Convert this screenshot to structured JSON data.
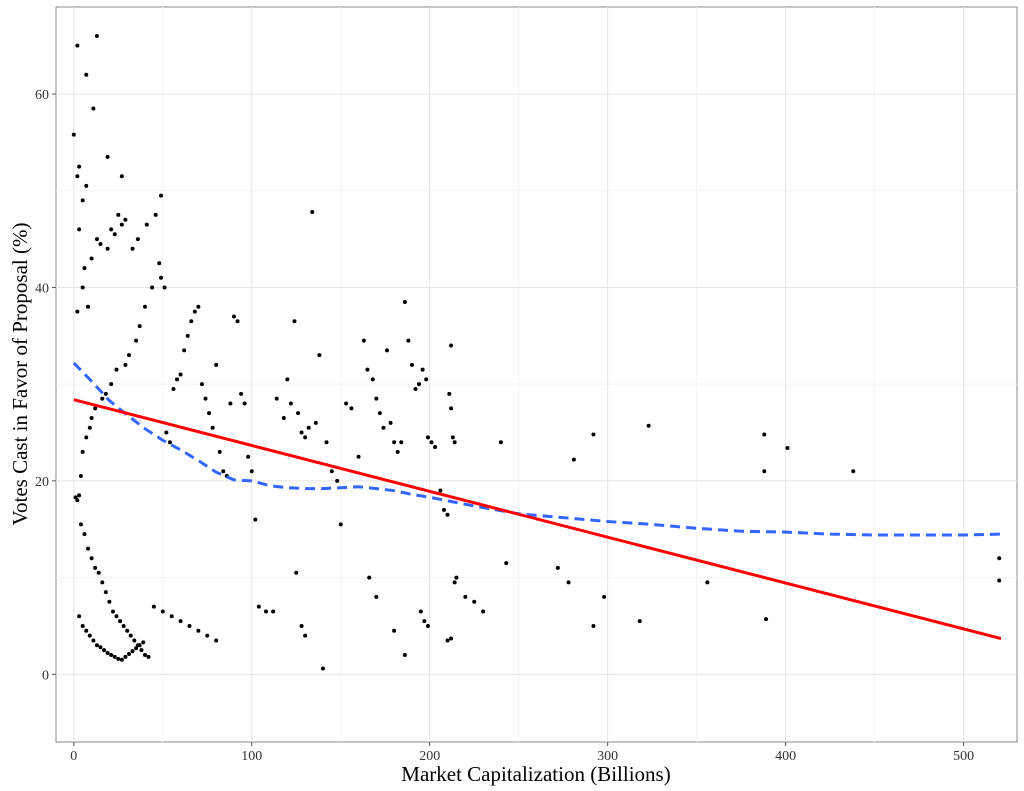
{
  "chart_data": {
    "type": "scatter",
    "xlabel": "Market Capitalization (Billions)",
    "ylabel": "Votes Cast in Favor of Proposal (%)",
    "xlim": [
      -10,
      530
    ],
    "ylim": [
      -7,
      69
    ],
    "x_ticks": [
      0,
      100,
      200,
      300,
      400,
      500
    ],
    "y_ticks": [
      0,
      20,
      40,
      60
    ],
    "x_tick_labels": [
      "0",
      "100",
      "200",
      "300",
      "400",
      "500"
    ],
    "y_tick_labels": [
      "0",
      "20",
      "40",
      "60"
    ],
    "grid": true,
    "legend": "none",
    "point_color": "#000000",
    "linear_fit": {
      "color": "#ff0000",
      "style": "solid",
      "x": [
        0,
        521
      ],
      "y": [
        28.4,
        3.7
      ]
    },
    "smooth_fit": {
      "color": "#3366ff",
      "style": "dashed",
      "x": [
        0,
        10,
        20,
        30,
        40,
        50,
        60,
        70,
        80,
        90,
        100,
        110,
        120,
        130,
        140,
        150,
        160,
        170,
        180,
        190,
        200,
        225,
        250,
        275,
        300,
        325,
        350,
        375,
        400,
        425,
        450,
        475,
        500,
        521
      ],
      "y": [
        32.2,
        30.3,
        28.3,
        26.8,
        25.4,
        24.2,
        23.2,
        22.1,
        20.9,
        20.1,
        20.0,
        19.5,
        19.3,
        19.2,
        19.2,
        19.3,
        19.4,
        19.2,
        19.0,
        18.6,
        18.3,
        17.4,
        16.6,
        16.2,
        15.8,
        15.5,
        15.1,
        14.8,
        14.7,
        14.5,
        14.4,
        14.4,
        14.4,
        14.5
      ]
    },
    "points": [
      [
        2,
        65
      ],
      [
        13,
        66
      ],
      [
        7,
        62
      ],
      [
        11,
        58.5
      ],
      [
        0,
        55.8
      ],
      [
        3,
        52.5
      ],
      [
        2,
        51.5
      ],
      [
        5,
        49
      ],
      [
        7,
        50.5
      ],
      [
        19,
        53.5
      ],
      [
        27,
        51.5
      ],
      [
        49,
        49.5
      ],
      [
        3,
        46
      ],
      [
        10,
        43
      ],
      [
        6,
        42
      ],
      [
        5,
        40
      ],
      [
        8,
        38
      ],
      [
        2,
        37.5
      ],
      [
        13,
        45
      ],
      [
        15,
        44.5
      ],
      [
        19,
        44
      ],
      [
        21,
        46
      ],
      [
        23,
        45.5
      ],
      [
        25,
        47.5
      ],
      [
        27,
        46.5
      ],
      [
        29,
        47
      ],
      [
        33,
        44
      ],
      [
        36,
        45
      ],
      [
        41,
        46.5
      ],
      [
        46,
        47.5
      ],
      [
        48,
        42.5
      ],
      [
        49,
        41
      ],
      [
        51,
        40
      ],
      [
        44,
        40
      ],
      [
        40,
        38
      ],
      [
        37,
        36
      ],
      [
        35,
        34.5
      ],
      [
        31,
        33
      ],
      [
        29,
        32
      ],
      [
        24,
        31.5
      ],
      [
        21,
        30
      ],
      [
        18,
        29
      ],
      [
        16,
        28.5
      ],
      [
        12,
        27.5
      ],
      [
        10,
        26.5
      ],
      [
        9,
        25.5
      ],
      [
        7,
        24.5
      ],
      [
        5,
        23
      ],
      [
        4,
        20.5
      ],
      [
        3,
        18.5
      ],
      [
        2,
        18
      ],
      [
        1,
        18.3
      ],
      [
        4,
        15.5
      ],
      [
        6,
        14.5
      ],
      [
        8,
        13
      ],
      [
        10,
        12
      ],
      [
        12,
        11
      ],
      [
        14,
        10.5
      ],
      [
        16,
        9.5
      ],
      [
        18,
        8.5
      ],
      [
        20,
        7.5
      ],
      [
        22,
        6.5
      ],
      [
        24,
        6
      ],
      [
        26,
        5.5
      ],
      [
        28,
        5
      ],
      [
        30,
        4.5
      ],
      [
        32,
        4
      ],
      [
        34,
        3.5
      ],
      [
        36,
        3
      ],
      [
        38,
        2.5
      ],
      [
        40,
        2
      ],
      [
        42,
        1.8
      ],
      [
        3,
        6
      ],
      [
        5,
        5
      ],
      [
        7,
        4.5
      ],
      [
        9,
        4
      ],
      [
        11,
        3.5
      ],
      [
        13,
        3
      ],
      [
        15,
        2.8
      ],
      [
        17,
        2.5
      ],
      [
        19,
        2.2
      ],
      [
        21,
        2
      ],
      [
        23,
        1.8
      ],
      [
        25,
        1.6
      ],
      [
        27,
        1.5
      ],
      [
        29,
        1.8
      ],
      [
        31,
        2.1
      ],
      [
        33,
        2.4
      ],
      [
        35,
        2.7
      ],
      [
        37,
        3
      ],
      [
        39,
        3.3
      ],
      [
        45,
        7
      ],
      [
        50,
        6.5
      ],
      [
        55,
        6
      ],
      [
        60,
        5.5
      ],
      [
        65,
        5
      ],
      [
        70,
        4.5
      ],
      [
        75,
        4
      ],
      [
        80,
        3.5
      ],
      [
        52,
        25
      ],
      [
        54,
        24
      ],
      [
        56,
        29.5
      ],
      [
        58,
        30.5
      ],
      [
        60,
        31
      ],
      [
        62,
        33.5
      ],
      [
        64,
        35
      ],
      [
        66,
        36.5
      ],
      [
        68,
        37.5
      ],
      [
        70,
        38
      ],
      [
        72,
        30
      ],
      [
        74,
        28.5
      ],
      [
        76,
        27
      ],
      [
        78,
        25.5
      ],
      [
        80,
        32
      ],
      [
        82,
        23
      ],
      [
        84,
        21
      ],
      [
        86,
        20.5
      ],
      [
        88,
        28
      ],
      [
        90,
        37
      ],
      [
        92,
        36.5
      ],
      [
        94,
        29
      ],
      [
        96,
        28
      ],
      [
        98,
        22.5
      ],
      [
        100,
        21
      ],
      [
        102,
        16
      ],
      [
        104,
        7
      ],
      [
        108,
        6.5
      ],
      [
        112,
        6.5
      ],
      [
        114,
        28.5
      ],
      [
        118,
        26.5
      ],
      [
        120,
        30.5
      ],
      [
        122,
        28
      ],
      [
        124,
        36.5
      ],
      [
        126,
        27
      ],
      [
        128,
        25
      ],
      [
        130,
        24.5
      ],
      [
        132,
        25.5
      ],
      [
        134,
        47.8
      ],
      [
        136,
        26
      ],
      [
        138,
        33
      ],
      [
        140,
        0.6
      ],
      [
        125,
        10.5
      ],
      [
        128,
        5
      ],
      [
        130,
        4
      ],
      [
        142,
        24
      ],
      [
        145,
        21
      ],
      [
        148,
        20
      ],
      [
        150,
        15.5
      ],
      [
        153,
        28
      ],
      [
        156,
        27.5
      ],
      [
        160,
        22.5
      ],
      [
        163,
        34.5
      ],
      [
        165,
        31.5
      ],
      [
        168,
        30.5
      ],
      [
        170,
        28.5
      ],
      [
        172,
        27
      ],
      [
        174,
        25.5
      ],
      [
        176,
        33.5
      ],
      [
        178,
        26
      ],
      [
        180,
        24
      ],
      [
        182,
        23
      ],
      [
        184,
        24
      ],
      [
        186,
        38.5
      ],
      [
        188,
        34.5
      ],
      [
        190,
        32
      ],
      [
        192,
        29.5
      ],
      [
        194,
        30
      ],
      [
        196,
        31.5
      ],
      [
        198,
        30.5
      ],
      [
        199,
        24.5
      ],
      [
        201,
        24
      ],
      [
        203,
        23.5
      ],
      [
        206,
        19
      ],
      [
        208,
        17
      ],
      [
        210,
        16.5
      ],
      [
        212,
        34
      ],
      [
        214,
        24
      ],
      [
        211,
        29
      ],
      [
        212,
        27.5
      ],
      [
        213,
        24.5
      ],
      [
        215,
        10
      ],
      [
        214,
        9.5
      ],
      [
        220,
        8
      ],
      [
        225,
        7.5
      ],
      [
        230,
        6.5
      ],
      [
        195,
        6.5
      ],
      [
        197,
        5.5
      ],
      [
        199,
        5
      ],
      [
        210,
        3.5
      ],
      [
        212,
        3.7
      ],
      [
        186,
        2
      ],
      [
        180,
        4.5
      ],
      [
        170,
        8
      ],
      [
        166,
        10
      ],
      [
        240,
        24
      ],
      [
        243,
        11.5
      ],
      [
        272,
        11
      ],
      [
        278,
        9.5
      ],
      [
        281,
        22.2
      ],
      [
        292,
        24.8
      ],
      [
        292,
        5
      ],
      [
        298,
        8
      ],
      [
        318,
        5.5
      ],
      [
        323,
        25.7
      ],
      [
        356,
        9.5
      ],
      [
        388,
        24.8
      ],
      [
        388,
        21
      ],
      [
        389,
        5.7
      ],
      [
        401,
        23.4
      ],
      [
        438,
        21
      ],
      [
        520,
        12
      ],
      [
        520,
        9.7
      ]
    ]
  }
}
